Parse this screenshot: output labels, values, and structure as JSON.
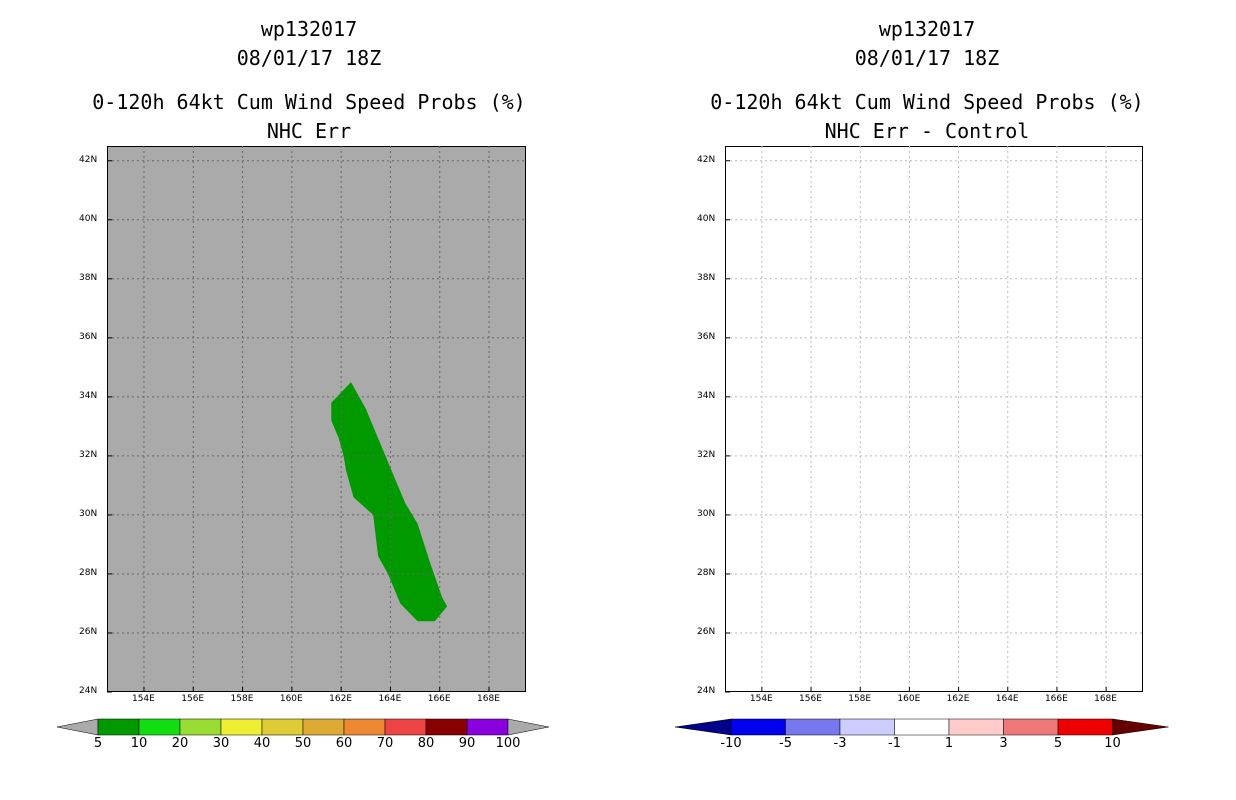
{
  "left": {
    "title_line1": "wp132017",
    "title_line2": "08/01/17 18Z",
    "title_line3": "0-120h 64kt Cum Wind Speed Probs (%)",
    "title_line4": "NHC Err",
    "colorbar_labels": [
      "5",
      "10",
      "20",
      "30",
      "40",
      "50",
      "60",
      "70",
      "80",
      "90",
      "100"
    ],
    "colorbar_colors": [
      "#009900",
      "#11dd11",
      "#99dd33",
      "#eeee33",
      "#ddcc33",
      "#ddaa33",
      "#ee8833",
      "#ee4444",
      "#880000",
      "#8800dd"
    ],
    "background_color": "#aaaaaa",
    "swath_color": "#009900"
  },
  "right": {
    "title_line1": "wp132017",
    "title_line2": "08/01/17 18Z",
    "title_line3": "0-120h 64kt Cum Wind Speed Probs (%)",
    "title_line4": "NHC Err - Control",
    "colorbar_labels": [
      "-10",
      "-5",
      "-3",
      "-1",
      "1",
      "3",
      "5",
      "10"
    ],
    "colorbar_colors": [
      "#0000ee",
      "#7777ee",
      "#ccccff",
      "#ffffff",
      "#ffcccc",
      "#ee7777",
      "#ee0000"
    ],
    "end_colors": [
      "#000088",
      "#660000"
    ]
  },
  "axes": {
    "lat_labels": [
      "42N",
      "40N",
      "38N",
      "36N",
      "34N",
      "32N",
      "30N",
      "28N",
      "26N",
      "24N"
    ],
    "lon_labels": [
      "154E",
      "156E",
      "158E",
      "160E",
      "162E",
      "164E",
      "166E",
      "168E"
    ]
  },
  "chart_data": {
    "type": "heatmap",
    "lon_range": [
      152.5,
      169.5
    ],
    "lat_range": [
      24,
      42.5
    ],
    "swath_probability_bin": "5-10",
    "swath_outline_lonlat": [
      [
        162.4,
        34.5
      ],
      [
        163.0,
        33.6
      ],
      [
        163.5,
        32.6
      ],
      [
        164.0,
        31.6
      ],
      [
        164.6,
        30.4
      ],
      [
        165.1,
        29.7
      ],
      [
        165.6,
        28.4
      ],
      [
        166.1,
        27.2
      ],
      [
        166.3,
        26.9
      ],
      [
        165.8,
        26.4
      ],
      [
        165.1,
        26.4
      ],
      [
        164.4,
        27.0
      ],
      [
        163.9,
        28.0
      ],
      [
        163.5,
        28.6
      ],
      [
        163.3,
        30.0
      ],
      [
        162.5,
        30.6
      ],
      [
        162.2,
        31.5
      ],
      [
        162.1,
        32.0
      ],
      [
        161.9,
        32.6
      ],
      [
        161.6,
        33.2
      ],
      [
        161.6,
        33.8
      ]
    ]
  }
}
